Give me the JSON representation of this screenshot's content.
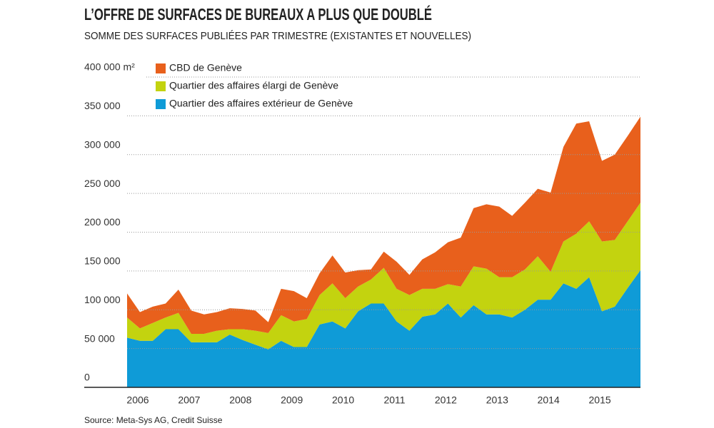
{
  "chart_data": {
    "type": "stacked_area",
    "title": "L’OFFRE DE SURFACES DE BUREAUX A PLUS QUE DOUBLÉ",
    "subtitle": "SOMME DES SURFACES PUBLIÉES PAR TRIMESTRE (EXISTANTES ET NOUVELLES)",
    "source": "Source: Meta-Sys AG, Credit Suisse",
    "x": [
      2006,
      2006.25,
      2006.5,
      2006.75,
      2007,
      2007.25,
      2007.5,
      2007.75,
      2008,
      2008.25,
      2008.5,
      2008.75,
      2009,
      2009.25,
      2009.5,
      2009.75,
      2010,
      2010.25,
      2010.5,
      2010.75,
      2011,
      2011.25,
      2011.5,
      2011.75,
      2012,
      2012.25,
      2012.5,
      2012.75,
      2013,
      2013.25,
      2013.5,
      2013.75,
      2014,
      2014.25,
      2014.5,
      2014.75,
      2015,
      2015.25,
      2015.5,
      2015.75,
      2016
    ],
    "series": [
      {
        "name": "Quartier des affaires extérieur de Genève",
        "color": "#0f9bd7",
        "values": [
          64000,
          60000,
          60000,
          75000,
          75000,
          58000,
          58000,
          58000,
          68000,
          61000,
          55000,
          49000,
          60000,
          52000,
          52000,
          81000,
          85000,
          76000,
          98000,
          108000,
          108000,
          85000,
          73000,
          91000,
          94000,
          108000,
          90000,
          106000,
          94000,
          94000,
          90000,
          100000,
          113000,
          113000,
          134000,
          127000,
          142000,
          98000,
          104000,
          128000,
          151000
        ]
      },
      {
        "name": "Quartier des affaires élargi de Genève",
        "color": "#c3d30f",
        "values": [
          26000,
          16000,
          23000,
          15000,
          21000,
          11000,
          11000,
          15000,
          7000,
          14000,
          18000,
          21000,
          33000,
          33000,
          36000,
          38000,
          49000,
          39000,
          32000,
          31000,
          46000,
          42000,
          46000,
          36000,
          33000,
          25000,
          40000,
          50000,
          59000,
          48000,
          52000,
          52000,
          56000,
          36000,
          54000,
          71000,
          72000,
          90000,
          86000,
          86000,
          87000
        ]
      },
      {
        "name": "CBD de Genève",
        "color": "#e8601c",
        "values": [
          31000,
          21000,
          21000,
          18000,
          30000,
          30000,
          25000,
          24000,
          27000,
          26000,
          26000,
          14000,
          34000,
          39000,
          27000,
          28000,
          36000,
          33000,
          21000,
          13000,
          21000,
          35000,
          26000,
          38000,
          47000,
          54000,
          63000,
          75000,
          83000,
          91000,
          79000,
          86000,
          87000,
          102000,
          122000,
          142000,
          129000,
          104000,
          110000,
          110000,
          111000
        ]
      }
    ],
    "xlim": [
      2006,
      2016
    ],
    "xticks": [
      2006,
      2007,
      2008,
      2009,
      2010,
      2011,
      2012,
      2013,
      2014,
      2015
    ],
    "ylim": [
      0,
      400000
    ],
    "yticks": [
      0,
      {
        "value": 50000,
        "label": "50 000"
      },
      {
        "value": 100000,
        "label": "100 000"
      },
      {
        "value": 150000,
        "label": "150 000"
      },
      {
        "value": 200000,
        "label": "200 000"
      },
      {
        "value": 250000,
        "label": "250 000"
      },
      {
        "value": 300000,
        "label": "300 000"
      },
      {
        "value": 350000,
        "label": "350 000"
      },
      {
        "value": 400000,
        "label": "400 000 m²"
      }
    ],
    "grid": true
  }
}
